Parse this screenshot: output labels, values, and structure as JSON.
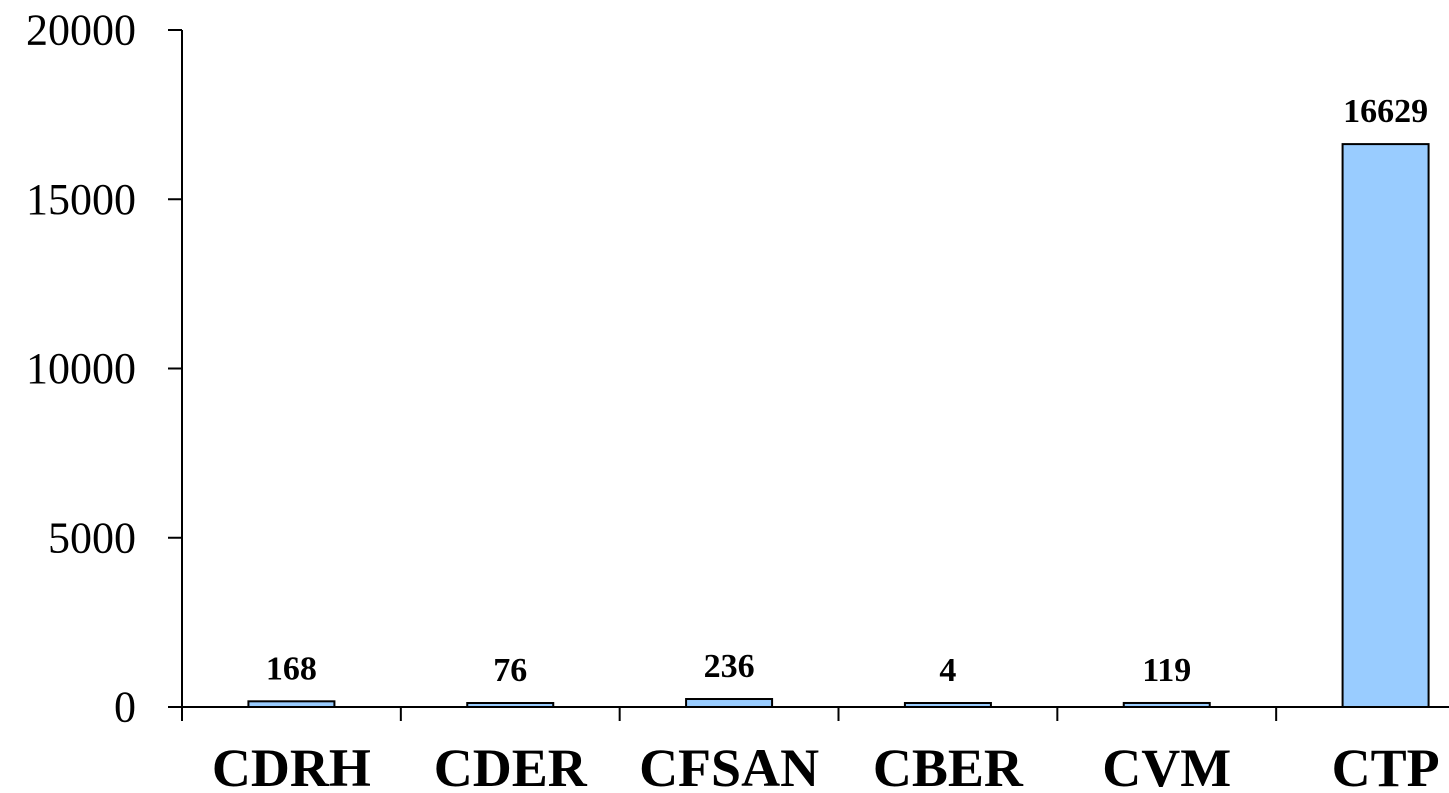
{
  "chart_data": {
    "type": "bar",
    "categories": [
      "CDRH",
      "CDER",
      "CFSAN",
      "CBER",
      "CVM",
      "CTP"
    ],
    "values": [
      168,
      76,
      236,
      4,
      119,
      16629
    ],
    "data_labels": [
      "168",
      "76",
      "236",
      "4",
      "119",
      "16629"
    ],
    "ylim": [
      0,
      20000
    ],
    "yticks": [
      0,
      5000,
      10000,
      15000,
      20000
    ],
    "ytick_labels": [
      "0",
      "5000",
      "10000",
      "15000",
      "20000"
    ],
    "grid": false,
    "legend": "none",
    "bar_color": "#99ccff",
    "title": "",
    "xlabel": "",
    "ylabel": ""
  }
}
